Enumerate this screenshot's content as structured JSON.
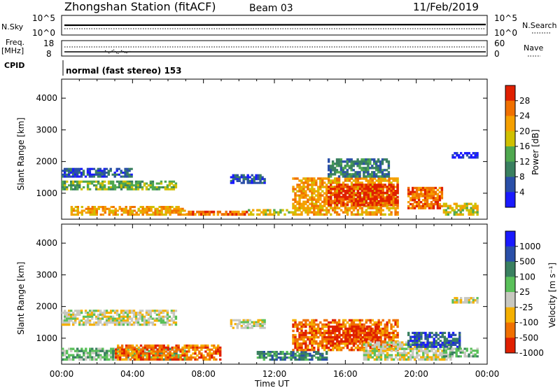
{
  "header": {
    "station": "Zhongshan Station (fitACF)",
    "beam": "Beam 03",
    "date": "11/Feb/2019"
  },
  "side_labels": {
    "nsky": "N.Sky",
    "nsky_ticks": [
      "10^5",
      "10^0"
    ],
    "nsearch": "N.Search",
    "nsearch_ticks": [
      "10^5",
      "10^0"
    ],
    "freq_line1": "Freq.",
    "freq_line2": "[MHz]",
    "freq_ticks": [
      "18",
      "8"
    ],
    "nave": "Nave",
    "nave_ticks": [
      "60",
      "0"
    ],
    "cpid": "CPID",
    "mode": "normal (fast stereo) 153"
  },
  "chart_data": [
    {
      "type": "heatmap",
      "name": "power",
      "ylabel": "Slant Range [km]",
      "ylim": [
        180,
        4600
      ],
      "yticks": [
        1000,
        2000,
        3000,
        4000
      ],
      "colorbar_label": "Power [dB]",
      "colorbar_ticks": [
        "4",
        "8",
        "12",
        "16",
        "20",
        "24",
        "28"
      ],
      "colors": [
        "#1a1aff",
        "#2a4fa8",
        "#3a8060",
        "#4fa84f",
        "#d0c000",
        "#f5a000",
        "#f07000",
        "#e02000"
      ],
      "bands": [
        {
          "t": [
            0.0,
            4.0
          ],
          "r": [
            1500,
            1800
          ],
          "lv": 1
        },
        {
          "t": [
            0.0,
            6.5
          ],
          "r": [
            1100,
            1400
          ],
          "lv": 3
        },
        {
          "t": [
            0.5,
            7.0
          ],
          "r": [
            300,
            600
          ],
          "lv": 5
        },
        {
          "t": [
            7.0,
            10.5
          ],
          "r": [
            300,
            450
          ],
          "lv": 6
        },
        {
          "t": [
            10.5,
            13.0
          ],
          "r": [
            300,
            500
          ],
          "lv": 4
        },
        {
          "t": [
            13.0,
            19.0
          ],
          "r": [
            300,
            1500
          ],
          "lv": 5
        },
        {
          "t": [
            15.0,
            19.0
          ],
          "r": [
            600,
            1300
          ],
          "lv": 7
        },
        {
          "t": [
            15.0,
            18.5
          ],
          "r": [
            1500,
            2100
          ],
          "lv": 2
        },
        {
          "t": [
            19.5,
            21.5
          ],
          "r": [
            500,
            1200
          ],
          "lv": 6
        },
        {
          "t": [
            21.5,
            23.5
          ],
          "r": [
            300,
            700
          ],
          "lv": 4
        },
        {
          "t": [
            9.5,
            11.5
          ],
          "r": [
            1300,
            1600
          ],
          "lv": 1
        },
        {
          "t": [
            22.0,
            23.5
          ],
          "r": [
            2100,
            2300
          ],
          "lv": 0
        }
      ]
    },
    {
      "type": "heatmap",
      "name": "velocity",
      "xlabel": "Time UT",
      "ylabel": "Slant Range [km]",
      "ylim": [
        180,
        4600
      ],
      "yticks": [
        1000,
        2000,
        3000,
        4000
      ],
      "xticks": [
        "00:00",
        "04:00",
        "08:00",
        "12:00",
        "16:00",
        "20:00",
        "00:00"
      ],
      "xlim": [
        0,
        24
      ],
      "colorbar_label": "Velocity [m s⁻¹]",
      "colorbar_ticks": [
        "1000",
        "500",
        "100",
        "25",
        "-25",
        "-100",
        "-500",
        "-1000"
      ],
      "colors": [
        "#1a1aff",
        "#2a4fa8",
        "#3a8060",
        "#5ac05a",
        "#c8c8c0",
        "#f5b000",
        "#f07000",
        "#e02000"
      ],
      "bands": [
        {
          "t": [
            0.0,
            6.5
          ],
          "r": [
            1400,
            1900
          ],
          "lv": 4
        },
        {
          "t": [
            0.0,
            7.0
          ],
          "r": [
            300,
            700
          ],
          "lv": 3
        },
        {
          "t": [
            3.0,
            9.0
          ],
          "r": [
            300,
            800
          ],
          "lv": 6
        },
        {
          "t": [
            9.5,
            11.5
          ],
          "r": [
            1300,
            1600
          ],
          "lv": 4
        },
        {
          "t": [
            11.0,
            15.0
          ],
          "r": [
            300,
            600
          ],
          "lv": 2
        },
        {
          "t": [
            13.0,
            19.0
          ],
          "r": [
            600,
            1600
          ],
          "lv": 6
        },
        {
          "t": [
            15.0,
            18.0
          ],
          "r": [
            800,
            1400
          ],
          "lv": 7
        },
        {
          "t": [
            17.0,
            22.0
          ],
          "r": [
            300,
            900
          ],
          "lv": 4
        },
        {
          "t": [
            19.5,
            22.5
          ],
          "r": [
            700,
            1200
          ],
          "lv": 1
        },
        {
          "t": [
            21.5,
            23.5
          ],
          "r": [
            400,
            700
          ],
          "lv": 3
        },
        {
          "t": [
            22.0,
            23.5
          ],
          "r": [
            2100,
            2300
          ],
          "lv": 4
        }
      ]
    }
  ]
}
